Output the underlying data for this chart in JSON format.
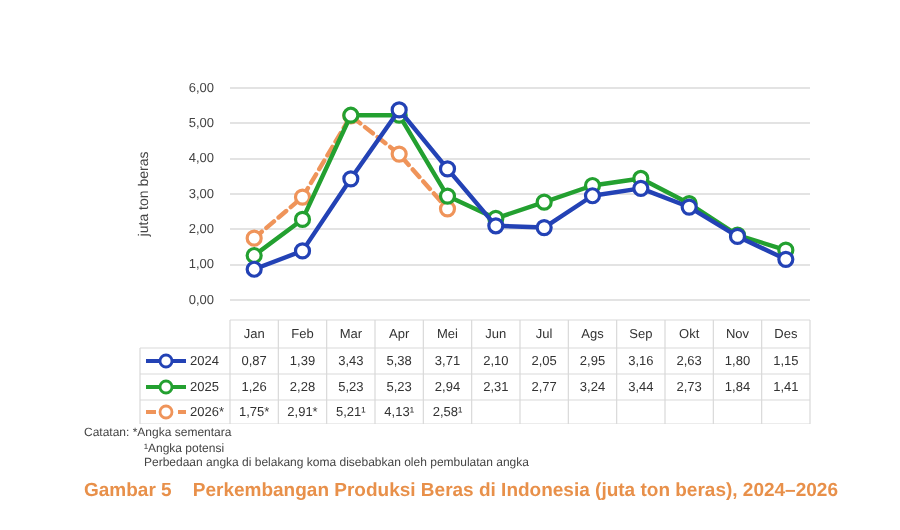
{
  "chart_data": {
    "type": "line",
    "title": "Gambar 5    Perkembangan Produksi Beras di Indonesia (juta ton beras), 2024–2026",
    "ylabel": "juta ton beras",
    "categories": [
      "Jan",
      "Feb",
      "Mar",
      "Apr",
      "Mei",
      "Jun",
      "Jul",
      "Ags",
      "Sep",
      "Okt",
      "Nov",
      "Des"
    ],
    "series": [
      {
        "name": "2024",
        "color": "#2342b5",
        "line_style": "solid",
        "values": [
          0.87,
          1.39,
          3.43,
          5.38,
          3.71,
          2.1,
          2.05,
          2.95,
          3.16,
          2.63,
          1.8,
          1.15
        ],
        "value_labels": [
          "0,87",
          "1,39",
          "3,43",
          "5,38",
          "3,71",
          "2,10",
          "2,05",
          "2,95",
          "3,16",
          "2,63",
          "1,80",
          "1,15"
        ]
      },
      {
        "name": "2025",
        "color": "#23a030",
        "line_style": "solid",
        "values": [
          1.26,
          2.28,
          5.23,
          5.23,
          2.94,
          2.31,
          2.77,
          3.24,
          3.44,
          2.73,
          1.84,
          1.41
        ],
        "value_labels": [
          "1,26",
          "2,28",
          "5,23",
          "5,23",
          "2,94",
          "2,31",
          "2,77",
          "3,24",
          "3,44",
          "2,73",
          "1,84",
          "1,41"
        ]
      },
      {
        "name": "2026*",
        "color": "#ef945a",
        "line_style": "dashed",
        "values": [
          1.75,
          2.91,
          5.21,
          4.13,
          2.58,
          null,
          null,
          null,
          null,
          null,
          null,
          null
        ],
        "value_labels": [
          "1,75*",
          "2,91*",
          "5,21¹",
          "4,13¹",
          "2,58¹",
          null,
          null,
          null,
          null,
          null,
          null,
          null
        ]
      }
    ],
    "ylim": [
      0,
      6
    ],
    "yticks": [
      {
        "value": 0,
        "label": "0,00"
      },
      {
        "value": 1,
        "label": "1,00"
      },
      {
        "value": 2,
        "label": "2,00"
      },
      {
        "value": 3,
        "label": "3,00"
      },
      {
        "value": 4,
        "label": "4,00"
      },
      {
        "value": 5,
        "label": "5,00"
      },
      {
        "value": 6,
        "label": "6,00"
      }
    ],
    "grid": "y",
    "legend": "bottom",
    "marker": "circle",
    "annotations": [
      "Catatan:  *Angka sementara",
      "¹Angka potensi",
      "Perbedaan angka di belakang koma disebabkan oleh pembulatan angka"
    ]
  }
}
